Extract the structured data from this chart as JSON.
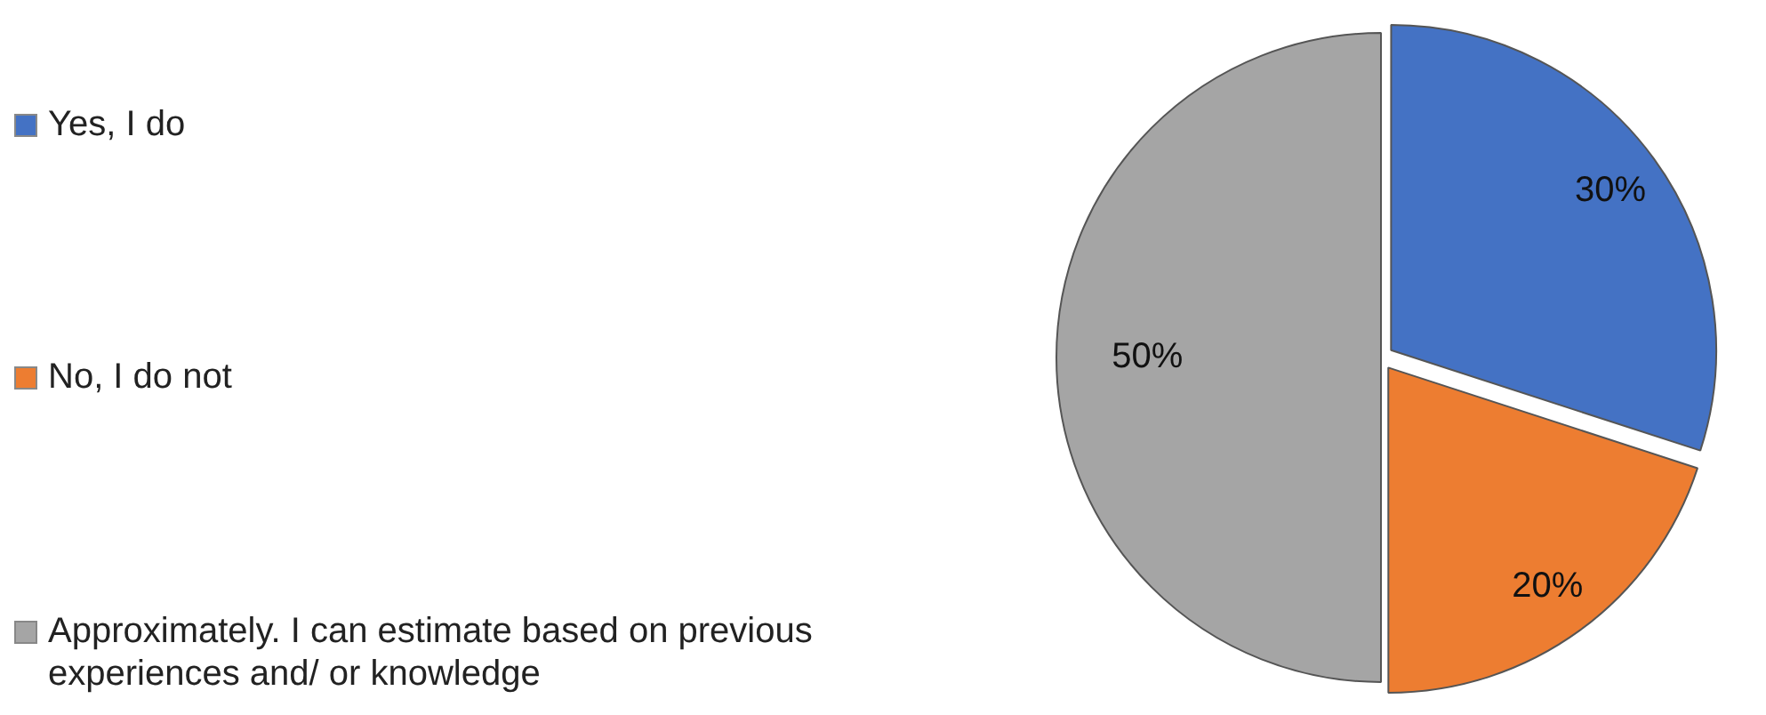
{
  "chart_data": {
    "type": "pie",
    "categories": [
      "Yes, I do",
      "No, I do not",
      "Approximately. I can estimate based on previous experiences and/ or knowledge"
    ],
    "values": [
      30,
      20,
      50
    ],
    "colors": [
      "#4472c4",
      "#ed7d31",
      "#a5a5a5"
    ],
    "value_labels": [
      "30%",
      "20%",
      "50%"
    ],
    "legend": "left"
  }
}
